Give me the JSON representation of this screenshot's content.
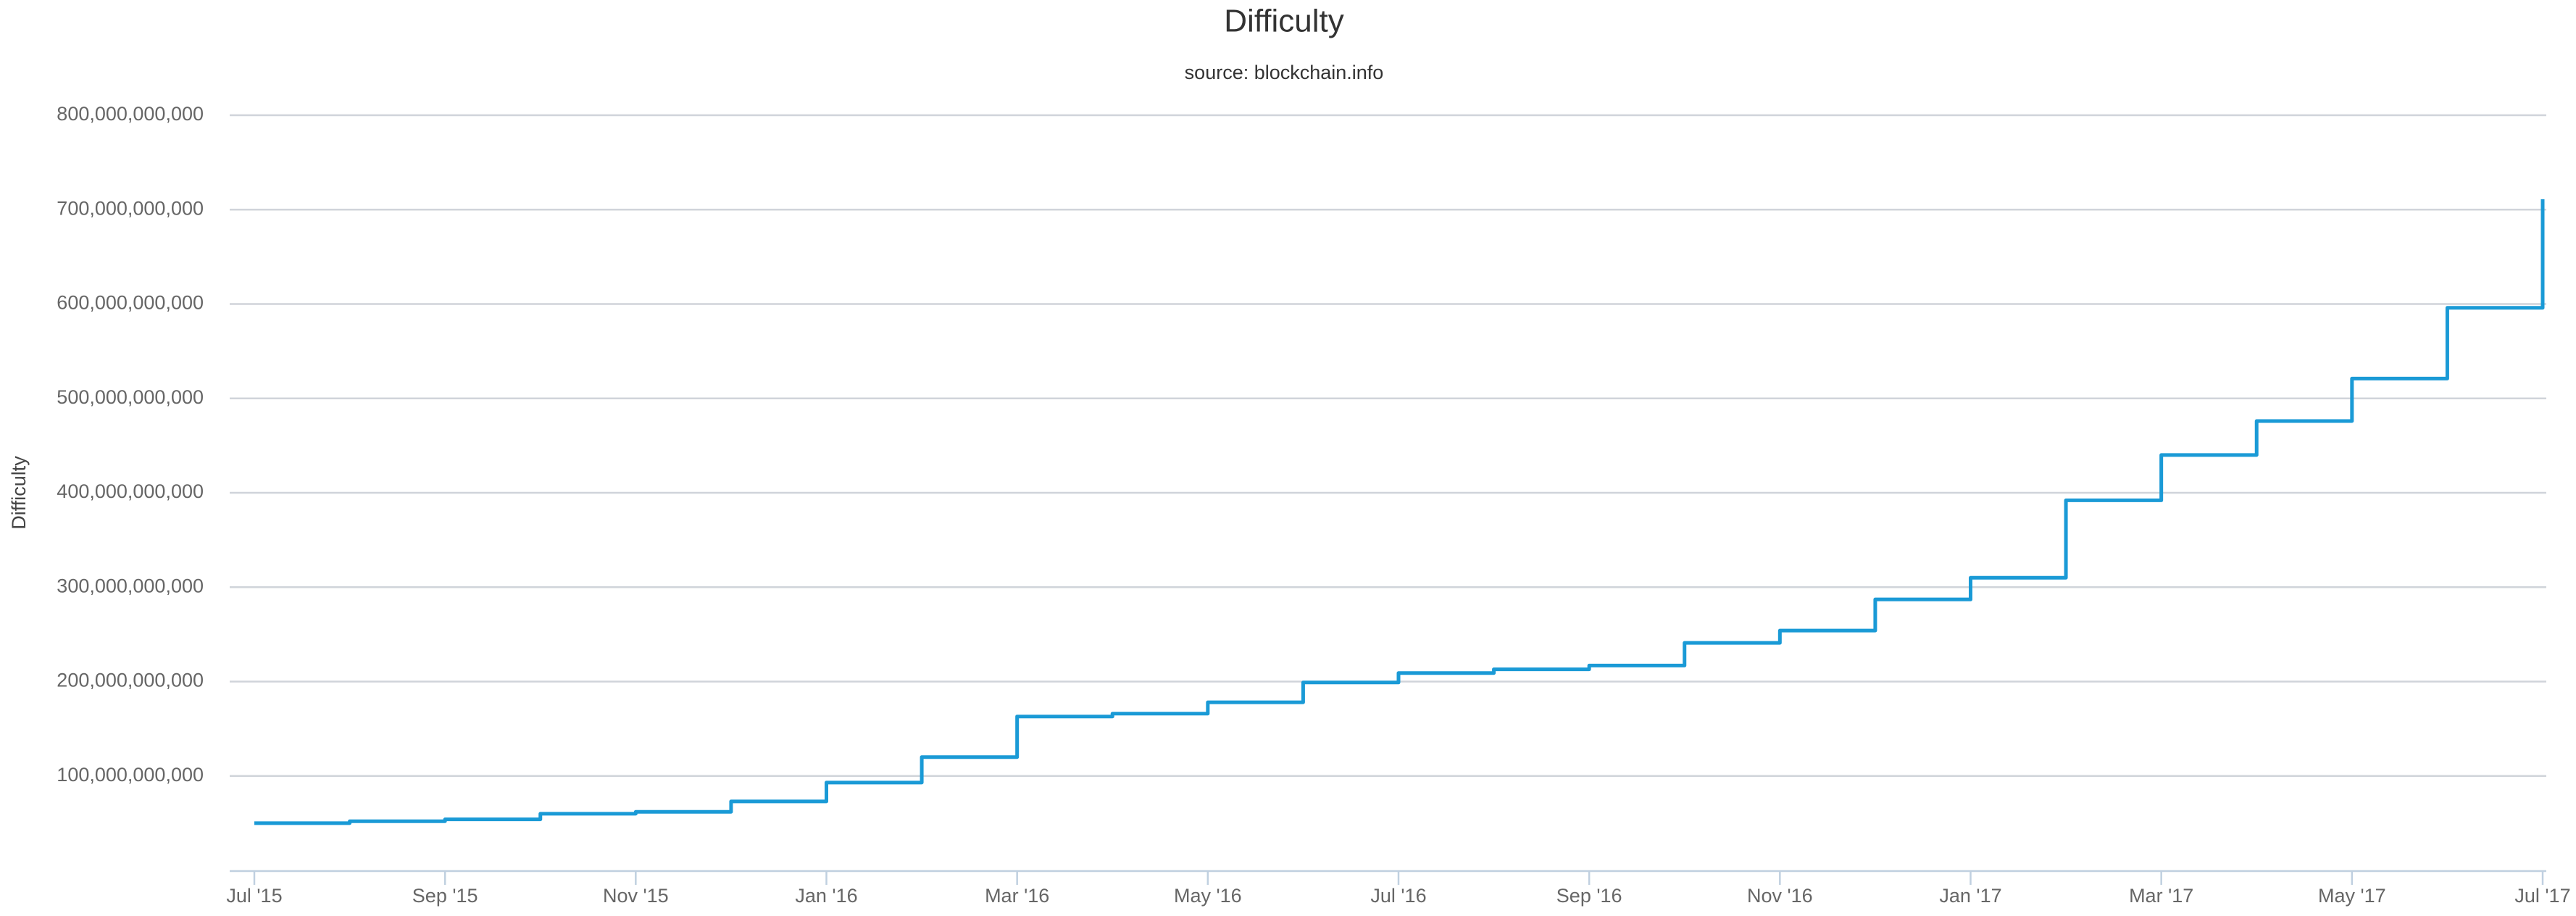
{
  "chart_data": {
    "type": "line",
    "title": "Difficulty",
    "subtitle": "source: blockchain.info",
    "y_label": "Difficulty",
    "step": true,
    "grid": true,
    "x": [
      "2015-07",
      "2015-08",
      "2015-09",
      "2015-10",
      "2015-11",
      "2015-12",
      "2016-01",
      "2016-02",
      "2016-03",
      "2016-04",
      "2016-05",
      "2016-06",
      "2016-07",
      "2016-08",
      "2016-09",
      "2016-10",
      "2016-11",
      "2016-12",
      "2017-01",
      "2017-02",
      "2017-03",
      "2017-04",
      "2017-05",
      "2017-06",
      "2017-07"
    ],
    "series": [
      {
        "name": "Difficulty",
        "color": "#1a9ad6",
        "values": [
          50000000000,
          52000000000,
          54000000000,
          60000000000,
          62000000000,
          73000000000,
          93000000000,
          120000000000,
          163000000000,
          166000000000,
          178000000000,
          199000000000,
          209000000000,
          213000000000,
          217000000000,
          241000000000,
          254000000000,
          287000000000,
          310000000000,
          392000000000,
          440000000000,
          476000000000,
          521000000000,
          596000000000,
          711000000000
        ]
      }
    ],
    "xlim": [
      "2015-07",
      "2017-07"
    ],
    "xticks": [
      {
        "value": "2015-07",
        "label": "Jul '15"
      },
      {
        "value": "2015-09",
        "label": "Sep '15"
      },
      {
        "value": "2015-11",
        "label": "Nov '15"
      },
      {
        "value": "2016-01",
        "label": "Jan '16"
      },
      {
        "value": "2016-03",
        "label": "Mar '16"
      },
      {
        "value": "2016-05",
        "label": "May '16"
      },
      {
        "value": "2016-07",
        "label": "Jul '16"
      },
      {
        "value": "2016-09",
        "label": "Sep '16"
      },
      {
        "value": "2016-11",
        "label": "Nov '16"
      },
      {
        "value": "2017-01",
        "label": "Jan '17"
      },
      {
        "value": "2017-03",
        "label": "Mar '17"
      },
      {
        "value": "2017-05",
        "label": "May '17"
      },
      {
        "value": "2017-07",
        "label": "Jul '17"
      }
    ],
    "ylim": [
      0,
      800000000000
    ],
    "yticks": [
      {
        "value": 100000000000,
        "label": "100,000,000,000"
      },
      {
        "value": 200000000000,
        "label": "200,000,000,000"
      },
      {
        "value": 300000000000,
        "label": "300,000,000,000"
      },
      {
        "value": 400000000000,
        "label": "400,000,000,000"
      },
      {
        "value": 500000000000,
        "label": "500,000,000,000"
      },
      {
        "value": 600000000000,
        "label": "600,000,000,000"
      },
      {
        "value": 700000000000,
        "label": "700,000,000,000"
      },
      {
        "value": 800000000000,
        "label": "800,000,000,000"
      }
    ]
  }
}
